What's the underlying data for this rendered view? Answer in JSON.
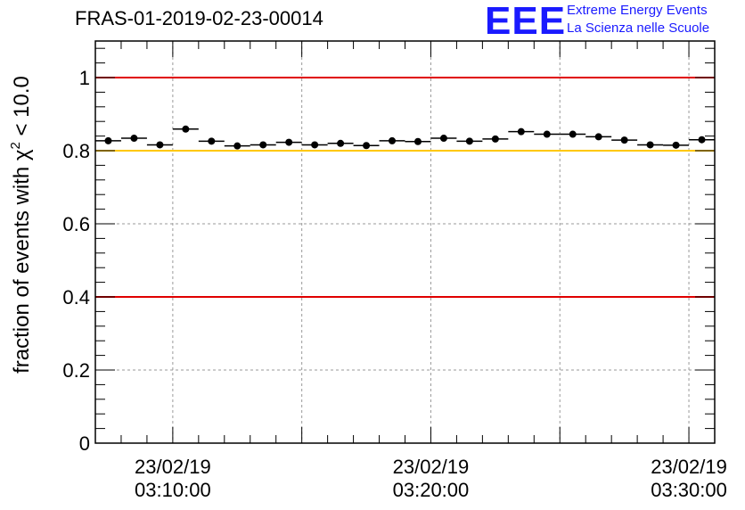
{
  "header": {
    "title": "FRAS-01-2019-02-23-00014",
    "logo": "EEE",
    "logo_line1": "Extreme Energy Events",
    "logo_line2": "La Scienza nelle Scuole"
  },
  "colors": {
    "brand_blue": "#1a1aff",
    "limit_red": "#e00000",
    "limit_yellow": "#ffc800",
    "marker": "#000000",
    "grid": "#9a9a9a"
  },
  "chart_data": {
    "type": "scatter",
    "title": "FRAS-01-2019-02-23-00014",
    "xlabel": "",
    "ylabel_main": "fraction of events with χ",
    "ylabel_sup": "2",
    "ylabel_tail": " < 10.0",
    "ylim": [
      0,
      1.1
    ],
    "yticks": [
      0,
      0.2,
      0.4,
      0.6,
      0.8,
      1
    ],
    "ytick_labels": [
      "0",
      "0.2",
      "0.4",
      "0.6",
      "0.8",
      "1"
    ],
    "xlim": [
      "2019-02-23 03:07:00",
      "2019-02-23 03:31:00"
    ],
    "xticks": [
      {
        "date": "23/02/19",
        "time": "03:10:00"
      },
      {
        "date": "23/02/19",
        "time": "03:20:00"
      },
      {
        "date": "23/02/19",
        "time": "03:30:00"
      }
    ],
    "grid": true,
    "reference_lines": [
      {
        "y": 1.0,
        "color": "red"
      },
      {
        "y": 0.8,
        "color": "yellow"
      },
      {
        "y": 0.4,
        "color": "red"
      }
    ],
    "series": [
      {
        "x": [
          "03:07:30",
          "03:08:30",
          "03:09:30",
          "03:10:30",
          "03:11:30",
          "03:12:30",
          "03:13:30",
          "03:14:30",
          "03:15:30",
          "03:16:30",
          "03:17:30",
          "03:18:30",
          "03:19:30",
          "03:20:30",
          "03:21:30",
          "03:22:30",
          "03:23:30",
          "03:24:30",
          "03:25:30",
          "03:26:30",
          "03:27:30",
          "03:28:30",
          "03:29:30",
          "03:30:30"
        ],
        "values": [
          0.827,
          0.834,
          0.816,
          0.859,
          0.826,
          0.813,
          0.816,
          0.823,
          0.816,
          0.82,
          0.814,
          0.827,
          0.825,
          0.834,
          0.826,
          0.832,
          0.852,
          0.845,
          0.845,
          0.838,
          0.829,
          0.816,
          0.815,
          0.83
        ]
      }
    ]
  }
}
